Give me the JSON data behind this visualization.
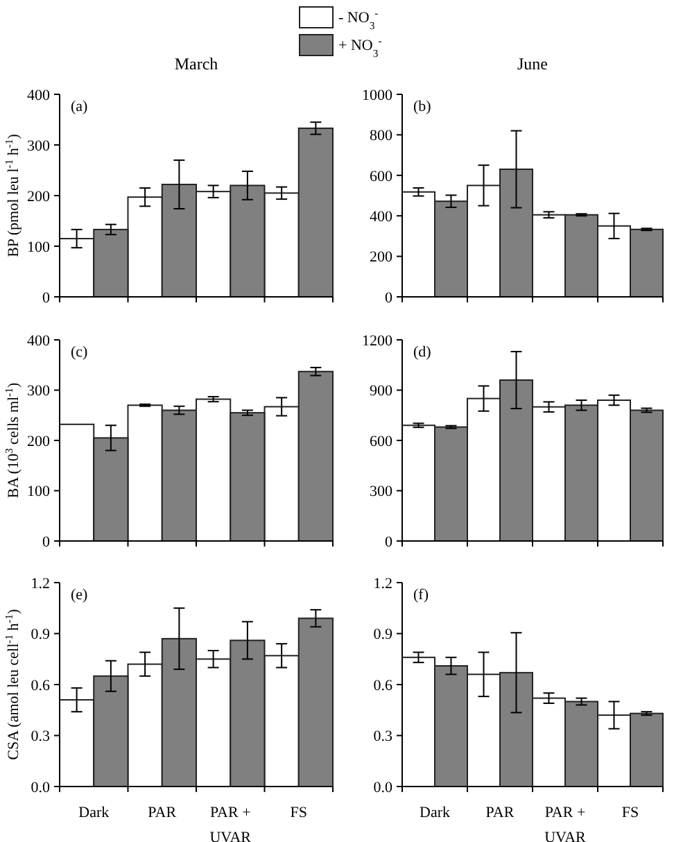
{
  "chart_data": [
    {
      "type": "bar",
      "title": "March",
      "ylabel": "BP (pmol leu l$^{-1}$ h$^{-1}$)",
      "annotations": [
        "(a)"
      ],
      "categories": [
        null,
        null,
        null,
        null
      ],
      "ylim": [
        0,
        400
      ],
      "yticks": [
        0,
        100,
        200,
        300,
        400
      ],
      "tick_labels": "y",
      "legend": "top",
      "series": [
        {
          "name": "- NO$_{3}$$^{-}$",
          "color": "#ffffff",
          "values": [
            115,
            197,
            208,
            205
          ],
          "errors": [
            18,
            18,
            12,
            12
          ]
        },
        {
          "name": "+ NO$_{3}$$^{-}$",
          "color": "#808080",
          "values": [
            133,
            222,
            220,
            333
          ],
          "errors": [
            10,
            48,
            28,
            12
          ]
        }
      ]
    },
    {
      "type": "bar",
      "title": "June",
      "annotations": [
        "(b)"
      ],
      "categories": [
        null,
        null,
        null,
        null
      ],
      "ylim": [
        0,
        1000
      ],
      "yticks": [
        0,
        200,
        400,
        600,
        800,
        1000
      ],
      "tick_labels": "y",
      "series": [
        {
          "color": "#ffffff",
          "values": [
            518,
            550,
            405,
            350
          ],
          "errors": [
            20,
            100,
            15,
            62
          ]
        },
        {
          "color": "#808080",
          "values": [
            472,
            630,
            405,
            333
          ],
          "errors": [
            30,
            190,
            5,
            5
          ]
        }
      ]
    },
    {
      "type": "bar",
      "ylabel": "BA (10$^{3}$ cells ml$^{-1}$)",
      "annotations": [
        "(c)"
      ],
      "categories": [
        null,
        null,
        null,
        null
      ],
      "ylim": [
        0,
        400
      ],
      "yticks": [
        0,
        100,
        200,
        300,
        400
      ],
      "tick_labels": "y",
      "series": [
        {
          "color": "#ffffff",
          "values": [
            232,
            270,
            282,
            267
          ],
          "errors": [
            null,
            2,
            5,
            18
          ]
        },
        {
          "color": "#808080",
          "values": [
            205,
            260,
            255,
            337
          ],
          "errors": [
            25,
            8,
            5,
            8
          ]
        }
      ]
    },
    {
      "type": "bar",
      "annotations": [
        "(d)"
      ],
      "categories": [
        null,
        null,
        null,
        null
      ],
      "ylim": [
        0,
        1200
      ],
      "yticks": [
        0,
        300,
        600,
        900,
        1200
      ],
      "tick_labels": "y",
      "series": [
        {
          "color": "#ffffff",
          "values": [
            690,
            850,
            800,
            840
          ],
          "errors": [
            12,
            75,
            30,
            30
          ]
        },
        {
          "color": "#808080",
          "values": [
            680,
            960,
            810,
            780
          ],
          "errors": [
            8,
            170,
            30,
            12
          ]
        }
      ]
    },
    {
      "type": "bar",
      "ylabel": "CSA (amol leu cell$^{-1}$ h$^{-1}$)",
      "annotations": [
        "(e)"
      ],
      "categories": [
        "Dark",
        "PAR",
        "PAR + UVAR",
        "FS"
      ],
      "ylim": [
        0,
        1.2
      ],
      "yticks": [
        {
          "value": 0,
          "label": "0.0"
        },
        0.3,
        0.6,
        0.9,
        1.2
      ],
      "series": [
        {
          "color": "#ffffff",
          "values": [
            0.51,
            0.72,
            0.75,
            0.77
          ],
          "errors": [
            0.07,
            0.07,
            0.05,
            0.07
          ]
        },
        {
          "color": "#808080",
          "values": [
            0.65,
            0.87,
            0.86,
            0.99
          ],
          "errors": [
            0.09,
            0.18,
            0.11,
            0.05
          ]
        }
      ]
    },
    {
      "type": "bar",
      "annotations": [
        "(f)"
      ],
      "categories": [
        "Dark",
        "PAR",
        "PAR + UVAR",
        "FS"
      ],
      "ylim": [
        0,
        1.2
      ],
      "yticks": [
        {
          "value": 0,
          "label": "0.0"
        },
        0.3,
        0.6,
        0.9,
        1.2
      ],
      "series": [
        {
          "color": "#ffffff",
          "values": [
            0.76,
            0.66,
            0.52,
            0.42
          ],
          "errors": [
            0.03,
            0.13,
            0.03,
            0.08
          ]
        },
        {
          "color": "#808080",
          "values": [
            0.71,
            0.67,
            0.5,
            0.43
          ],
          "errors": [
            0.05,
            0.235,
            0.02,
            0.01
          ]
        }
      ]
    }
  ]
}
